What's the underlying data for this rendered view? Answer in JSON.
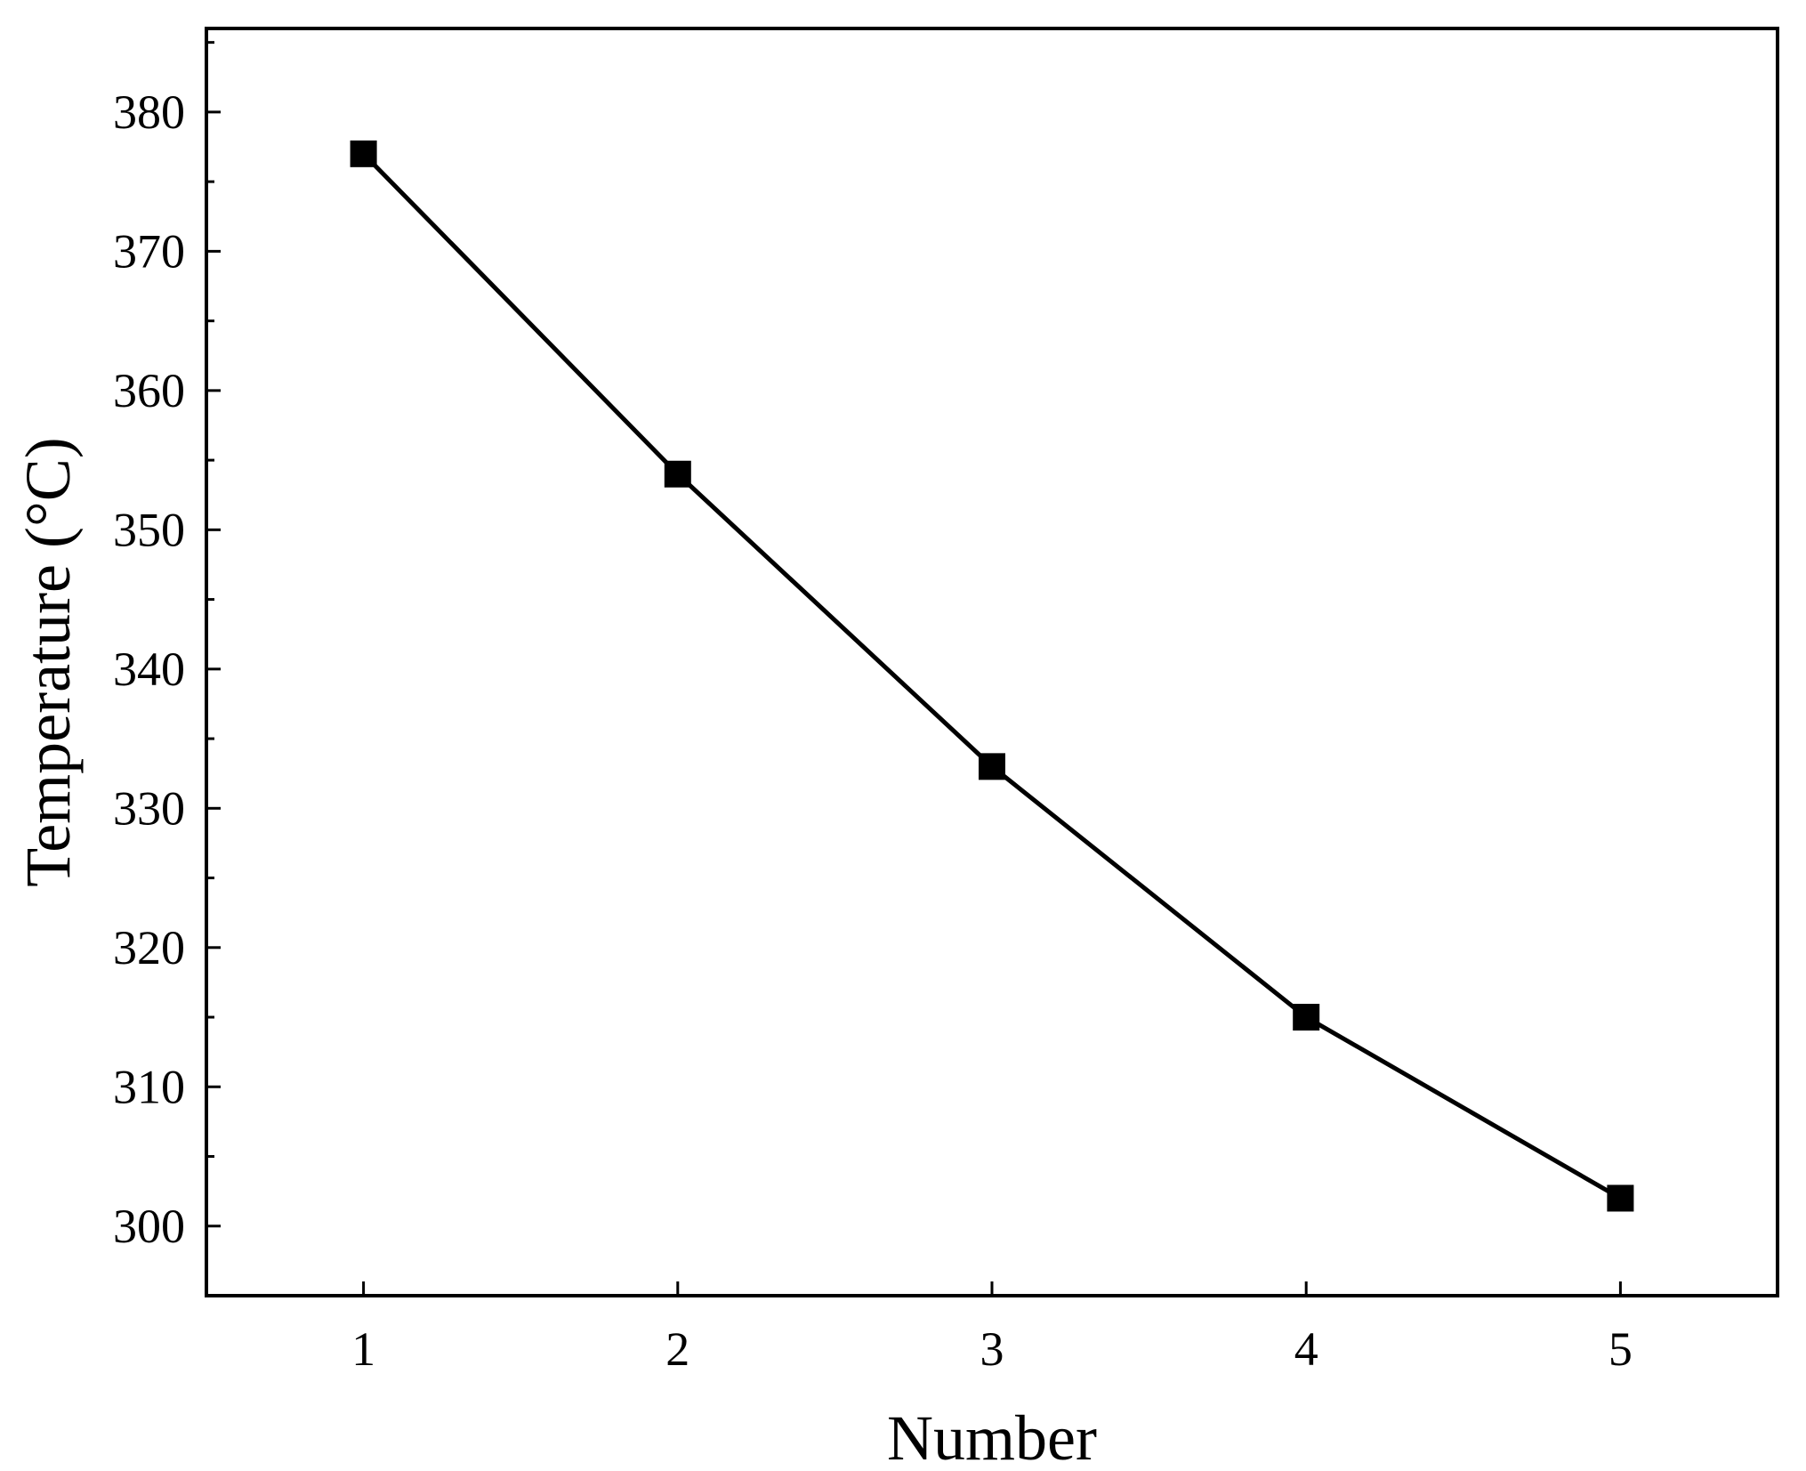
{
  "chart_data": {
    "type": "line",
    "title": "",
    "xlabel": "Number",
    "ylabel": "Temperature (°C)",
    "x": [
      1,
      2,
      3,
      4,
      5
    ],
    "series": [
      {
        "values": [
          377,
          354,
          333,
          315,
          302
        ],
        "marker": "square",
        "color": "#000000"
      }
    ],
    "xlim": [
      0.5,
      5.5
    ],
    "ylim": [
      295,
      386
    ],
    "x_ticks": [
      1,
      2,
      3,
      4,
      5
    ],
    "y_ticks": [
      300,
      310,
      320,
      330,
      340,
      350,
      360,
      370,
      380
    ],
    "y_minor_step": 5,
    "grid": false,
    "legend": "none"
  }
}
